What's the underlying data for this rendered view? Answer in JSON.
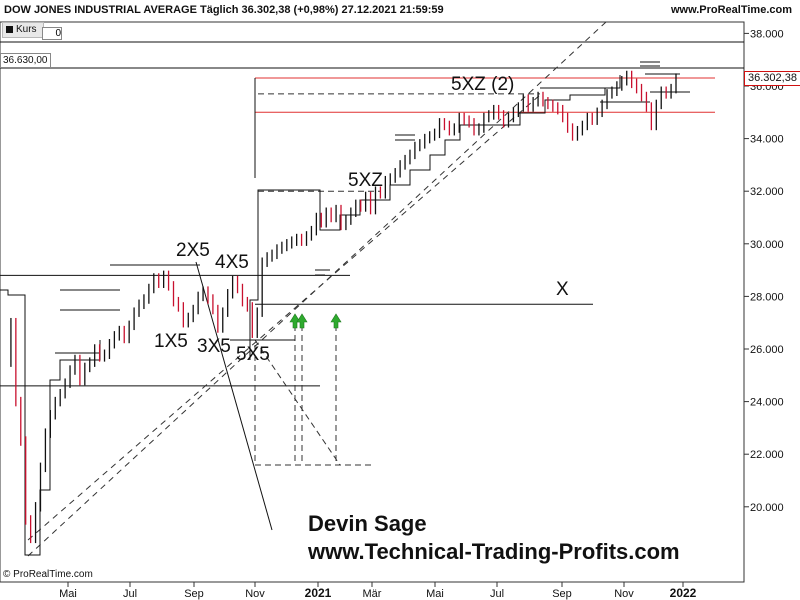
{
  "header": {
    "title": "DOW JONES INDUSTRIAL AVERAGE Täglich 36.302,38 (+0,98%) 27.12.2021 21:59:59",
    "website": "www.ProRealTime.com"
  },
  "legend": {
    "label": "Kurs"
  },
  "left_value_box": "36.630,00",
  "left_value_box_small": "0",
  "last_price_label": "36.302,38",
  "copyright": "© ProRealTime.com",
  "author": {
    "name": "Devin Sage",
    "url": "www.Technical-Trading-Profits.com"
  },
  "colors": {
    "up": "#111111",
    "down": "#c8102e",
    "resistance": "#e03030",
    "arrow": "#2eaa2e",
    "grid_dashed": "#333333"
  },
  "chart_data": {
    "type": "point-and-figure-overlay",
    "xlabel": "",
    "ylabel": "",
    "x_ticks": [
      "Mai",
      "Jul",
      "Sep",
      "Nov",
      "2021",
      "Mär",
      "Mai",
      "Jul",
      "Sep",
      "Nov",
      "2022"
    ],
    "y_ticks": [
      20000,
      22000,
      24000,
      26000,
      28000,
      30000,
      32000,
      34000,
      36000,
      38000
    ],
    "y_tick_labels": [
      "20.000",
      "22.000",
      "24.000",
      "26.000",
      "28.000",
      "30.000",
      "32.000",
      "34.000",
      "36.000",
      "38.000"
    ],
    "ylim": [
      18000,
      39000
    ],
    "grid": false,
    "series": [
      {
        "values": [
          [
            0,
            25500
          ],
          [
            5,
            27000
          ],
          [
            10,
            24000
          ],
          [
            15,
            22500
          ],
          [
            20,
            19500
          ],
          [
            25,
            18800
          ],
          [
            30,
            20000
          ],
          [
            35,
            21500
          ],
          [
            40,
            22800
          ],
          [
            45,
            23500
          ],
          [
            50,
            24000
          ],
          [
            55,
            24300
          ],
          [
            60,
            24700
          ],
          [
            65,
            25200
          ],
          [
            70,
            25600
          ],
          [
            75,
            24800
          ],
          [
            80,
            25300
          ],
          [
            85,
            25500
          ],
          [
            90,
            26000
          ],
          [
            95,
            25700
          ],
          [
            100,
            25800
          ],
          [
            105,
            26200
          ],
          [
            110,
            26500
          ],
          [
            115,
            26700
          ],
          [
            120,
            26400
          ],
          [
            125,
            26900
          ],
          [
            130,
            27400
          ],
          [
            135,
            27700
          ],
          [
            140,
            27900
          ],
          [
            145,
            28300
          ],
          [
            150,
            28700
          ],
          [
            155,
            28500
          ],
          [
            160,
            28800
          ],
          [
            165,
            28400
          ],
          [
            170,
            27800
          ],
          [
            175,
            27600
          ],
          [
            180,
            27000
          ],
          [
            185,
            27200
          ],
          [
            190,
            27500
          ],
          [
            195,
            28000
          ],
          [
            200,
            28200
          ],
          [
            205,
            27900
          ],
          [
            210,
            27500
          ],
          [
            215,
            26800
          ],
          [
            220,
            27400
          ],
          [
            225,
            28100
          ],
          [
            230,
            28600
          ],
          [
            235,
            28300
          ],
          [
            240,
            27800
          ],
          [
            245,
            27600
          ],
          [
            250,
            26600
          ],
          [
            255,
            27400
          ],
          [
            260,
            29300
          ],
          [
            265,
            29500
          ],
          [
            270,
            29600
          ],
          [
            275,
            29800
          ],
          [
            280,
            29900
          ],
          [
            285,
            30000
          ],
          [
            290,
            30100
          ],
          [
            295,
            30200
          ],
          [
            300,
            30100
          ],
          [
            305,
            30300
          ],
          [
            310,
            30500
          ],
          [
            315,
            31000
          ],
          [
            320,
            30800
          ],
          [
            325,
            31200
          ],
          [
            330,
            31000
          ],
          [
            335,
            31300
          ],
          [
            340,
            30700
          ],
          [
            345,
            30900
          ],
          [
            350,
            31200
          ],
          [
            355,
            31500
          ],
          [
            360,
            31400
          ],
          [
            365,
            31800
          ],
          [
            370,
            31300
          ],
          [
            375,
            32000
          ],
          [
            380,
            31900
          ],
          [
            385,
            32400
          ],
          [
            390,
            32500
          ],
          [
            395,
            32700
          ],
          [
            400,
            33000
          ],
          [
            405,
            33200
          ],
          [
            410,
            33400
          ],
          [
            415,
            33700
          ],
          [
            420,
            33800
          ],
          [
            425,
            34000
          ],
          [
            430,
            34100
          ],
          [
            435,
            34200
          ],
          [
            440,
            34600
          ],
          [
            445,
            34500
          ],
          [
            450,
            34300
          ],
          [
            455,
            34400
          ],
          [
            460,
            34800
          ],
          [
            465,
            34700
          ],
          [
            470,
            34600
          ],
          [
            475,
            34300
          ],
          [
            480,
            34400
          ],
          [
            485,
            34800
          ],
          [
            490,
            34900
          ],
          [
            495,
            35100
          ],
          [
            500,
            34900
          ],
          [
            505,
            34600
          ],
          [
            510,
            34800
          ],
          [
            515,
            35000
          ],
          [
            520,
            35200
          ],
          [
            525,
            35500
          ],
          [
            530,
            35200
          ],
          [
            535,
            35400
          ],
          [
            540,
            35600
          ],
          [
            545,
            35400
          ],
          [
            550,
            35300
          ],
          [
            555,
            35200
          ],
          [
            560,
            35100
          ],
          [
            565,
            34800
          ],
          [
            570,
            34400
          ],
          [
            575,
            34100
          ],
          [
            580,
            34300
          ],
          [
            585,
            34500
          ],
          [
            590,
            34800
          ],
          [
            595,
            34700
          ],
          [
            600,
            35000
          ],
          [
            605,
            35300
          ],
          [
            610,
            35700
          ],
          [
            615,
            35800
          ],
          [
            620,
            36000
          ],
          [
            625,
            36200
          ],
          [
            630,
            36400
          ],
          [
            635,
            36100
          ],
          [
            640,
            35900
          ],
          [
            645,
            35600
          ],
          [
            650,
            35200
          ],
          [
            655,
            34500
          ],
          [
            660,
            35300
          ],
          [
            665,
            35800
          ],
          [
            670,
            35700
          ],
          [
            675,
            35900
          ],
          [
            680,
            36300
          ]
        ]
      }
    ],
    "annotations": [
      "2X5",
      "4X5",
      "1X5",
      "3X5",
      "5X5",
      "5XZ",
      "5XZ (2)",
      "X"
    ],
    "resistance_levels": [
      36302,
      35000
    ],
    "reference_levels": [
      36630
    ]
  }
}
